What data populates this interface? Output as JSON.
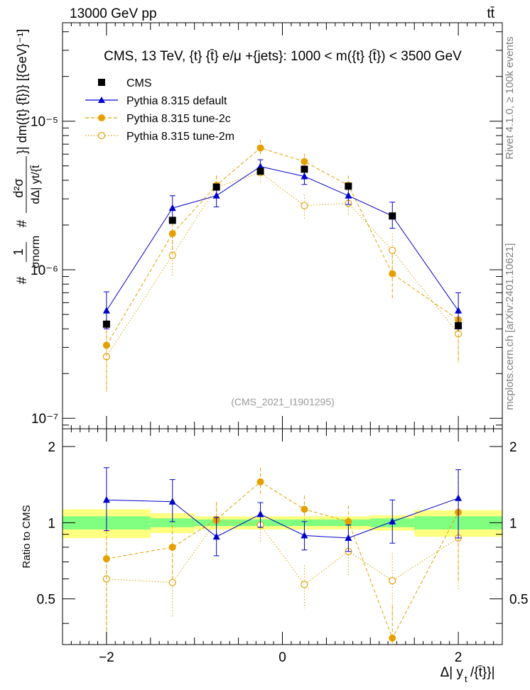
{
  "header": {
    "energy": "13000 GeV pp",
    "process": "tt̄",
    "side_rivet": "Rivet 4.1.0, ≥ 100k events",
    "side_url": "mcplots.cern.ch [arXiv:2401.10621]"
  },
  "colors": {
    "cms": "#000000",
    "default": "#0000cc",
    "tune2c": "#e69f00",
    "tune2m": "#e69f00",
    "band_outer": "#ffff80",
    "band_inner": "#80ff80"
  },
  "chart_data": [
    {
      "type": "line",
      "panel": "main",
      "title": "CMS, 13 TeV, {t} {t̄} e/μ +{jets}: 1000 < m({t} {t̄}) < 3500 GeV",
      "ylabel_parts": {
        "hash1": "#",
        "one": "1",
        "sigma_norm": "σnorm",
        "hash2": "#",
        "d2sigma": "d²σ",
        "denominator": "dΔ| yt/{t̄",
        "tail": "}| dm({t} {t̄})} [{GeV}⁻¹]"
      },
      "watermark": "(CMS_2021_I1901295)",
      "yscale": "log",
      "ylim": [
        8.5e-08,
        4.6e-05
      ],
      "xlim": [
        -2.5,
        2.5
      ],
      "xticks": [
        -2,
        0,
        2
      ],
      "ytick_labels": [
        "10⁻⁷",
        "10⁻⁶",
        "10⁻⁵"
      ],
      "x": [
        -2.0,
        -1.25,
        -0.75,
        -0.25,
        0.25,
        0.75,
        1.25,
        2.0
      ],
      "series": [
        {
          "name": "CMS",
          "key": "cms",
          "marker": "square",
          "values": [
            4.3e-07,
            2.15e-06,
            3.6e-06,
            4.6e-06,
            4.75e-06,
            3.65e-06,
            2.3e-06,
            4.2e-07
          ],
          "err_lo": [
            3e-08,
            1e-07,
            1e-07,
            1e-07,
            1e-07,
            1e-07,
            1e-07,
            3e-08
          ],
          "err_hi": [
            3e-08,
            1e-07,
            1e-07,
            1e-07,
            1e-07,
            1e-07,
            1e-07,
            3e-08
          ]
        },
        {
          "name": "Pythia 8.315 default",
          "key": "default",
          "marker": "triangle",
          "dash": "",
          "values": [
            5.3e-07,
            2.6e-06,
            3.15e-06,
            4.95e-06,
            4.25e-06,
            3.15e-06,
            2.3e-06,
            5.3e-07
          ],
          "err_lo": [
            1.3e-07,
            4e-07,
            5e-07,
            5e-07,
            5e-07,
            4e-07,
            4e-07,
            1.3e-07
          ],
          "err_hi": [
            1.8e-07,
            5.5e-07,
            6e-07,
            5.5e-07,
            6e-07,
            5e-07,
            5.5e-07,
            1.7e-07
          ]
        },
        {
          "name": "Pythia 8.315 tune-2c",
          "key": "tune2c",
          "marker": "circle",
          "dash": "5,3",
          "values": [
            3.1e-07,
            1.75e-06,
            3.7e-06,
            6.6e-06,
            5.35e-06,
            3.7e-06,
            9.4e-07,
            4.6e-07
          ],
          "err_lo": [
            1.6e-07,
            5e-07,
            6e-07,
            6e-07,
            6e-07,
            6e-07,
            3.2e-07,
            2.2e-07
          ],
          "err_hi": [
            1.6e-07,
            5e-07,
            6e-07,
            9e-07,
            7e-07,
            6e-07,
            3.2e-07,
            2.2e-07
          ]
        },
        {
          "name": "Pythia 8.315 tune-2m",
          "key": "tune2m",
          "marker": "open-circle",
          "dash": "1.5,2.5",
          "values": [
            2.6e-07,
            1.25e-06,
            3.6e-06,
            4.5e-06,
            2.7e-06,
            2.8e-06,
            1.35e-06,
            3.7e-07
          ],
          "err_lo": [
            1.1e-07,
            3.5e-07,
            6e-07,
            7e-07,
            5e-07,
            5e-07,
            4e-07,
            1.4e-07
          ],
          "err_hi": [
            1.1e-07,
            4e-07,
            7e-07,
            7e-07,
            5e-07,
            5e-07,
            4e-07,
            1.4e-07
          ]
        }
      ]
    },
    {
      "type": "line",
      "panel": "ratio",
      "ylabel": "Ratio to CMS",
      "xlabel": "Δ| yt/{t̄}}|",
      "xlabel_parts": {
        "main": "Δ| y",
        "sub": "t",
        "tail": "/{t̄}}|"
      },
      "ylim": [
        0.33,
        2.35
      ],
      "xlim": [
        -2.5,
        2.5
      ],
      "xticks": [
        -2,
        0,
        2
      ],
      "ytick_labels": [
        "0.5",
        "1",
        "2"
      ],
      "bands": {
        "edges": [
          -2.5,
          -1.5,
          -1.0,
          -0.5,
          0.0,
          0.5,
          1.0,
          1.5,
          2.5
        ],
        "outer_lo": [
          0.87,
          0.91,
          0.94,
          0.94,
          0.94,
          0.94,
          0.93,
          0.88
        ],
        "outer_hi": [
          1.13,
          1.09,
          1.06,
          1.06,
          1.06,
          1.06,
          1.07,
          1.12
        ],
        "inner_lo": [
          0.94,
          0.96,
          0.97,
          0.97,
          0.97,
          0.97,
          0.96,
          0.94
        ],
        "inner_hi": [
          1.06,
          1.04,
          1.03,
          1.03,
          1.03,
          1.03,
          1.04,
          1.06
        ]
      },
      "x": [
        -2.0,
        -1.25,
        -0.75,
        -0.25,
        0.25,
        0.75,
        1.25,
        2.0
      ],
      "series": [
        {
          "name": "Pythia 8.315 default",
          "key": "default",
          "marker": "triangle",
          "dash": "",
          "values": [
            1.23,
            1.21,
            0.88,
            1.08,
            0.89,
            0.87,
            1.01,
            1.25
          ],
          "err_lo": [
            0.3,
            0.2,
            0.14,
            0.12,
            0.11,
            0.1,
            0.18,
            0.38
          ],
          "err_hi": [
            0.42,
            0.27,
            0.17,
            0.12,
            0.12,
            0.11,
            0.22,
            0.37
          ]
        },
        {
          "name": "Pythia 8.315 tune-2c",
          "key": "tune2c",
          "marker": "circle",
          "dash": "5,3",
          "values": [
            0.72,
            0.8,
            1.03,
            1.45,
            1.13,
            1.01,
            0.35,
            1.1
          ],
          "err_lo": [
            0.37,
            0.22,
            0.17,
            0.18,
            0.13,
            0.16,
            0.12,
            0.52
          ],
          "err_hi": [
            0.37,
            0.23,
            0.17,
            0.2,
            0.15,
            0.16,
            0.12,
            0.52
          ]
        },
        {
          "name": "Pythia 8.315 tune-2m",
          "key": "tune2m",
          "marker": "open-circle",
          "dash": "1.5,2.5",
          "values": [
            0.6,
            0.58,
            1.02,
            0.98,
            0.57,
            0.77,
            0.59,
            0.87
          ],
          "err_lo": [
            0.26,
            0.16,
            0.17,
            0.15,
            0.11,
            0.15,
            0.17,
            0.33
          ],
          "err_hi": [
            0.26,
            0.18,
            0.19,
            0.15,
            0.11,
            0.15,
            0.17,
            0.33
          ]
        }
      ]
    }
  ]
}
